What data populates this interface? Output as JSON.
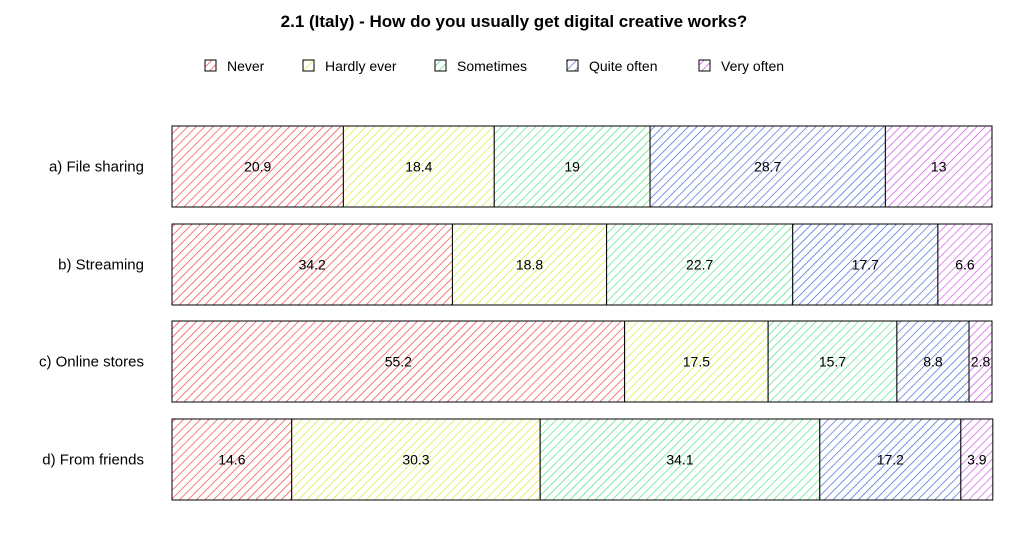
{
  "chart_data": {
    "type": "bar",
    "orientation": "horizontal",
    "stacked": true,
    "title": "2.1 (Italy) - How do you usually get digital creative works?",
    "xlabel": "",
    "ylabel": "",
    "xlim": [
      0,
      100
    ],
    "grid": false,
    "legend_position": "top",
    "fill_pattern": "diagonal-hatch",
    "categories": [
      "a) File sharing",
      "b) Streaming",
      "c) Online stores",
      "d) From friends"
    ],
    "series": [
      {
        "name": "Never",
        "color": "#ee3535",
        "values": [
          20.9,
          34.2,
          55.2,
          14.6
        ]
      },
      {
        "name": "Hardly ever",
        "color": "#d6ea2a",
        "values": [
          18.4,
          18.8,
          17.5,
          30.3
        ]
      },
      {
        "name": "Sometimes",
        "color": "#44e07a",
        "values": [
          19,
          22.7,
          15.7,
          34.1
        ]
      },
      {
        "name": "Quite often",
        "color": "#3a5ed6",
        "values": [
          28.7,
          17.7,
          8.8,
          17.2
        ]
      },
      {
        "name": "Very often",
        "color": "#cf48e6",
        "values": [
          13,
          6.6,
          2.8,
          3.9
        ]
      }
    ]
  }
}
